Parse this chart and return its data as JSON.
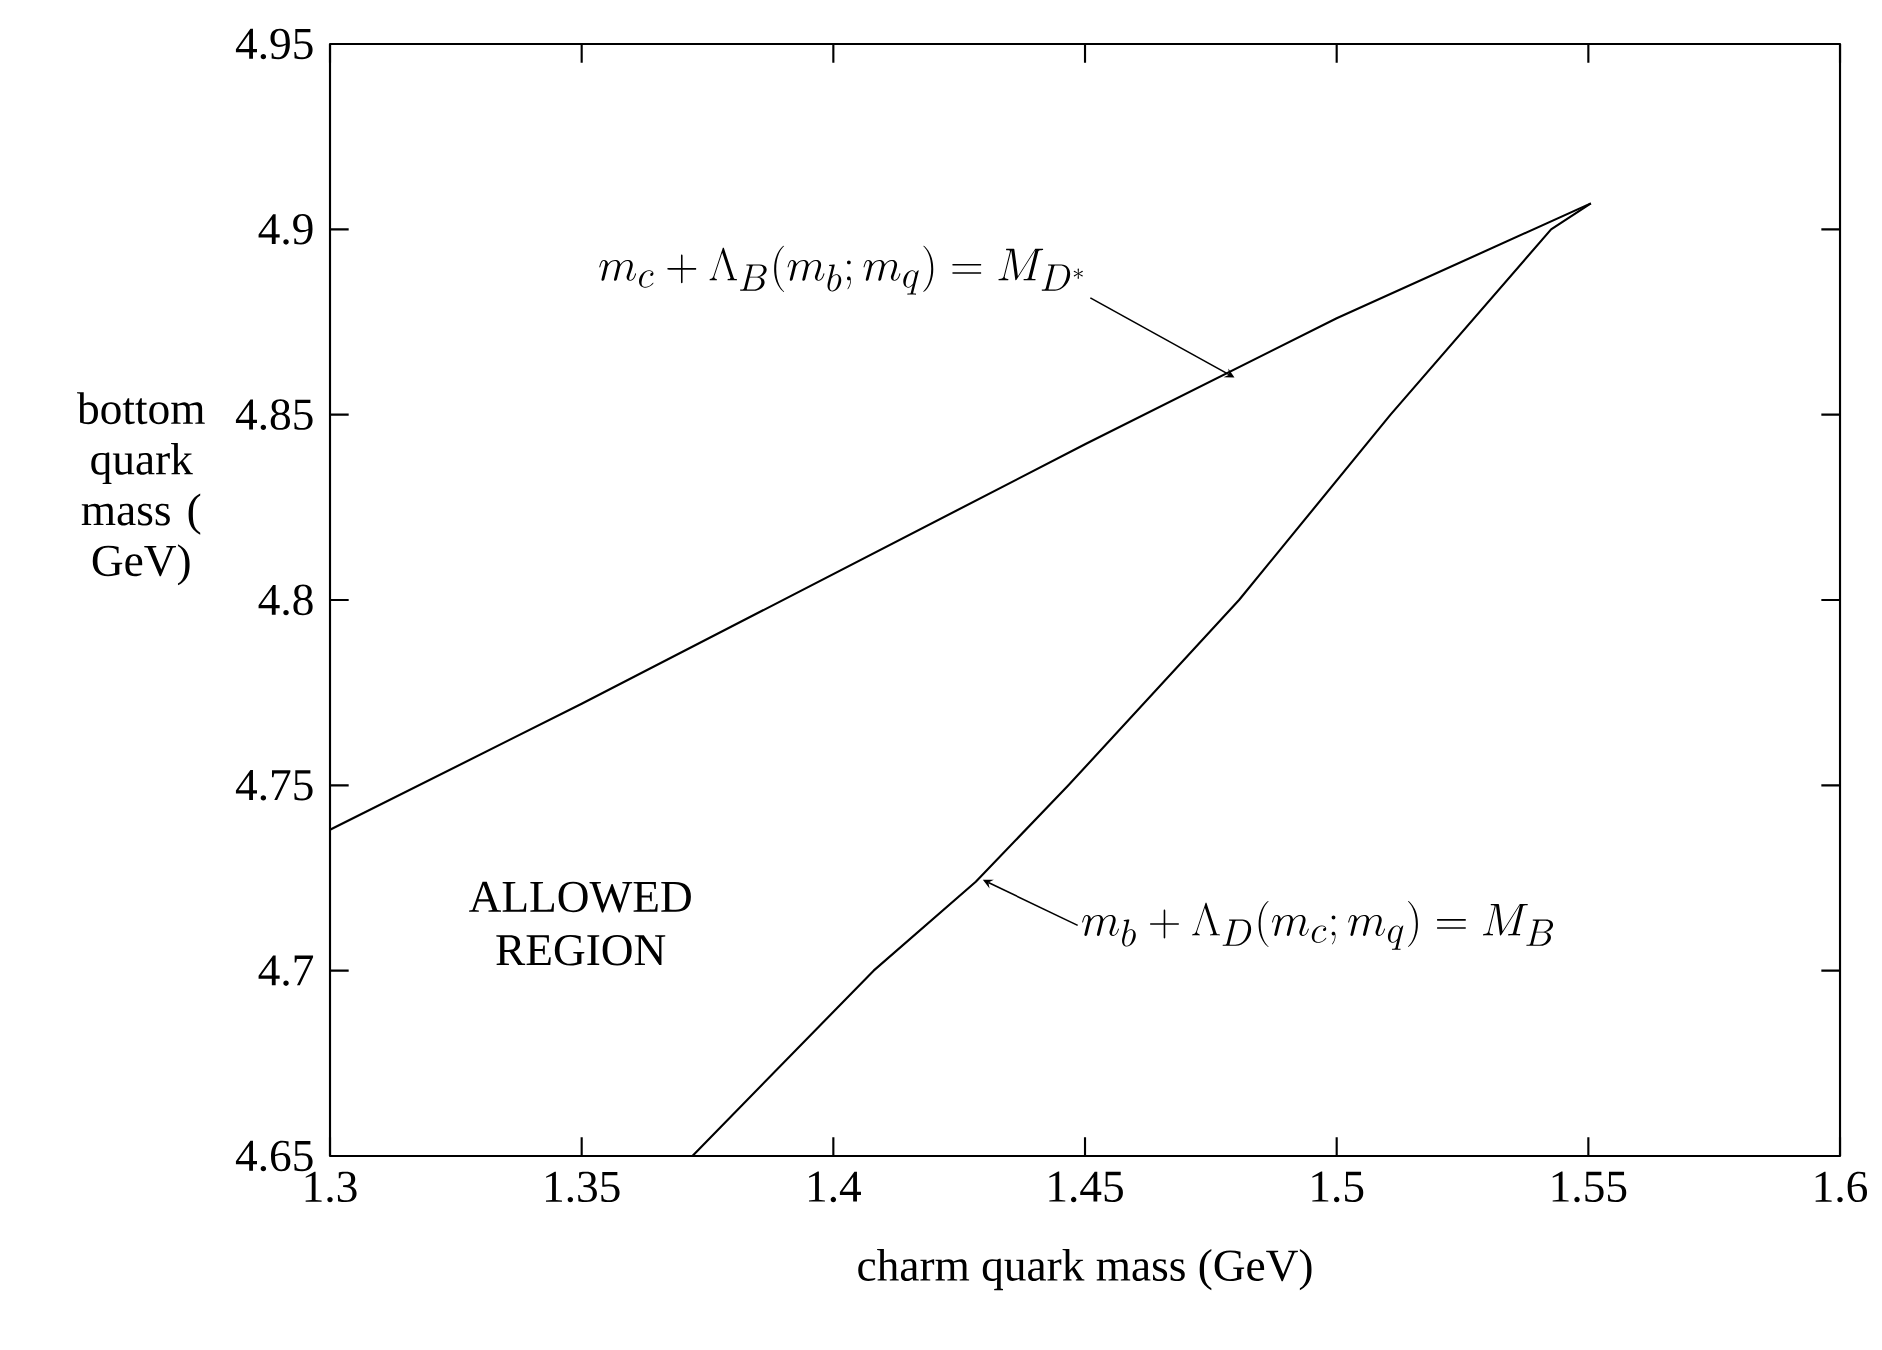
{
  "chart_data": {
    "type": "line",
    "xlabel": "charm quark mass (GeV)",
    "ylabel": "bottom quark mass ( GeV)",
    "xlim": [
      1.3,
      1.6
    ],
    "ylim": [
      4.65,
      4.95
    ],
    "xticks": [
      1.3,
      1.35,
      1.4,
      1.45,
      1.5,
      1.55,
      1.6
    ],
    "yticks": [
      4.65,
      4.7,
      4.75,
      4.8,
      4.85,
      4.9,
      4.95
    ],
    "marker": "none",
    "line_style": "solid",
    "series": [
      {
        "color": "#000000",
        "x": [
          1.3,
          1.35,
          1.4,
          1.45,
          1.5,
          1.5505
        ],
        "values": [
          4.738,
          4.772,
          4.807,
          4.842,
          4.876,
          4.907
        ]
      },
      {
        "color": "#000000",
        "x": [
          1.372,
          1.408,
          1.4283,
          1.4467,
          1.4806,
          1.5107,
          1.5426,
          1.5505
        ],
        "values": [
          4.65,
          4.7,
          4.724,
          4.75,
          4.8,
          4.85,
          4.9,
          4.907
        ]
      }
    ],
    "annotations": [
      {
        "text": "m_c+\\Lambda_B(m_b;m_q)=M_{D^*}",
        "x": 1.4797,
        "y": 4.86
      },
      {
        "text": "m_b+\\Lambda_D(m_c;m_q)=M_B",
        "x": 1.4297,
        "y": 4.7245
      },
      "ALLOWED REGION"
    ]
  }
}
